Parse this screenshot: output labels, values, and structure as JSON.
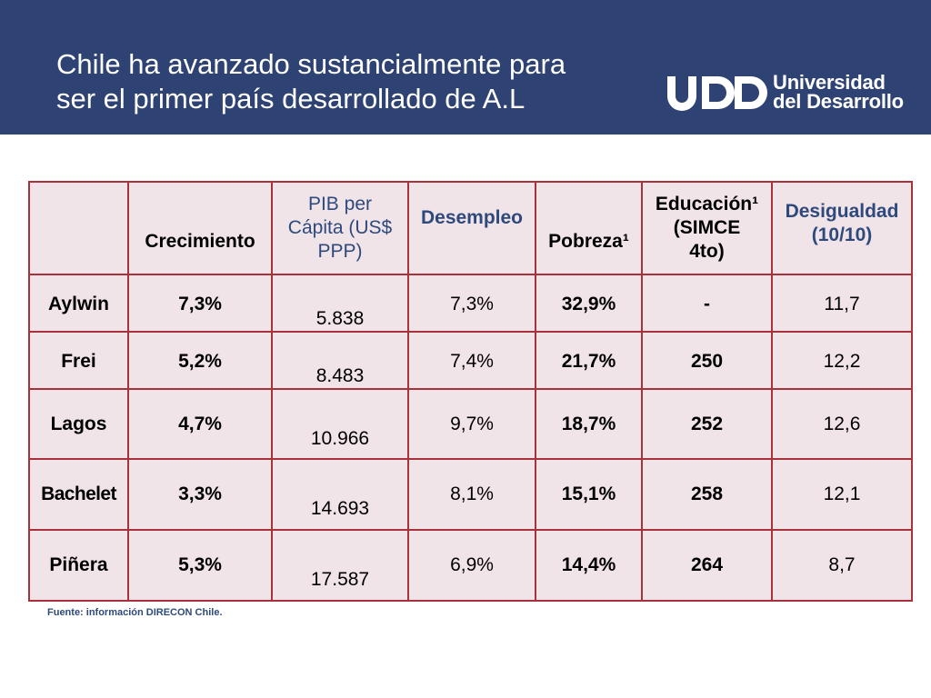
{
  "slide": {
    "title": "Chile ha avanzado sustancialmente para\nser el primer país desarrollado de A.L",
    "logo": {
      "line1": "Universidad",
      "line2": "del Desarrollo"
    },
    "source": "Fuente: información DIRECON Chile."
  },
  "table": {
    "headers": {
      "corner": "",
      "crecimiento": "Crecimiento",
      "pib_l1": "PIB per",
      "pib_l2": "Cápita (US$",
      "pib_l3": "PPP)",
      "desempleo": "Desempleo",
      "pobreza": "Pobreza¹",
      "educ_l1": "Educación¹",
      "educ_l2": "(SIMCE",
      "educ_l3": "4to)",
      "desig_l1": "Desigualdad",
      "desig_l2": "(10/10)"
    },
    "rows": [
      {
        "president": "Aylwin",
        "crecimiento": "7,3%",
        "pib": "5.838",
        "desempleo": "7,3%",
        "pobreza": "32,9%",
        "educacion": "-",
        "desigualdad": "11,7"
      },
      {
        "president": "Frei",
        "crecimiento": "5,2%",
        "pib": "8.483",
        "desempleo": "7,4%",
        "pobreza": "21,7%",
        "educacion": "250",
        "desigualdad": "12,2"
      },
      {
        "president": "Lagos",
        "crecimiento": "4,7%",
        "pib": "10.966",
        "desempleo": "9,7%",
        "pobreza": "18,7%",
        "educacion": "252",
        "desigualdad": "12,6"
      },
      {
        "president": "Bachelet",
        "crecimiento": "3,3%",
        "pib": "14.693",
        "desempleo": "8,1%",
        "pobreza": "15,1%",
        "educacion": "258",
        "desigualdad": "12,1"
      },
      {
        "president": "Piñera",
        "crecimiento": "5,3%",
        "pib": "17.587",
        "desempleo": "6,9%",
        "pobreza": "14,4%",
        "educacion": "264",
        "desigualdad": "8,7"
      }
    ]
  },
  "colors": {
    "header_bg": "#2e4373",
    "cell_bg": "#f1e4e8",
    "border": "#a8323b",
    "accent_text": "#2e4a7d"
  }
}
